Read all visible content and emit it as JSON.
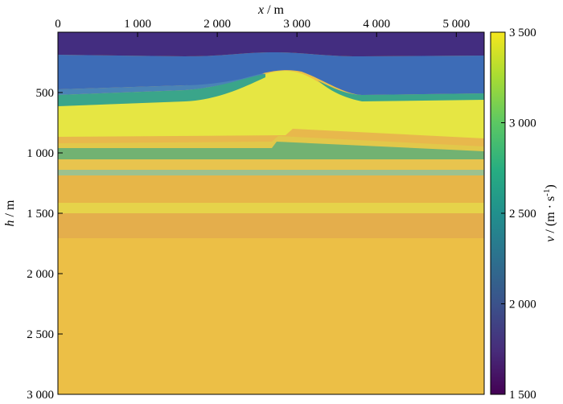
{
  "chart_data": {
    "type": "heatmap",
    "x_axis": {
      "label_var": "x",
      "label_unit": "m",
      "position": "top",
      "range": [
        0,
        5350
      ],
      "ticks": [
        0,
        1000,
        2000,
        3000,
        4000,
        5000
      ],
      "tick_labels": [
        "0",
        "1 000",
        "2 000",
        "3 000",
        "4 000",
        "5 000"
      ]
    },
    "y_axis": {
      "label_var": "h",
      "label_unit": "m",
      "inverted": true,
      "range": [
        0,
        3000
      ],
      "ticks": [
        500,
        1000,
        1500,
        2000,
        2500,
        3000
      ],
      "tick_labels": [
        "500",
        "1 000",
        "1 500",
        "2 000",
        "2 500",
        "3 000"
      ]
    },
    "colorbar": {
      "label_var": "v",
      "label_unit_pre": "(m · s",
      "label_unit_sup": "-1",
      "label_unit_post": ")",
      "range": [
        1500,
        3500
      ],
      "ticks": [
        1500,
        2000,
        2500,
        3000,
        3500
      ],
      "tick_labels": [
        "1 500",
        "2 000",
        "2 500",
        "3 000",
        "3 500"
      ]
    },
    "layers": [
      {
        "velocity": 1550,
        "color": "#432d80"
      },
      {
        "velocity": 1960,
        "color": "#3d6cb7"
      },
      {
        "velocity": 2300,
        "color": "#4a83b6"
      },
      {
        "velocity": 2600,
        "color": "#3aa58a"
      },
      {
        "velocity": 3200,
        "color": "#d8e44a"
      },
      {
        "velocity": 3380,
        "color": "#e6e643"
      },
      {
        "velocity": 3120,
        "color": "#e8b84c"
      },
      {
        "velocity": 3250,
        "color": "#e2c84a"
      },
      {
        "velocity": 2750,
        "color": "#72b272"
      },
      {
        "velocity": 3150,
        "color": "#e8c44e"
      },
      {
        "velocity": 3050,
        "color": "#e7b648"
      },
      {
        "velocity": 3300,
        "color": "#e6d34a"
      },
      {
        "velocity": 3100,
        "color": "#e4ae4c"
      },
      {
        "velocity": 3140,
        "color": "#ecbf46"
      }
    ]
  }
}
